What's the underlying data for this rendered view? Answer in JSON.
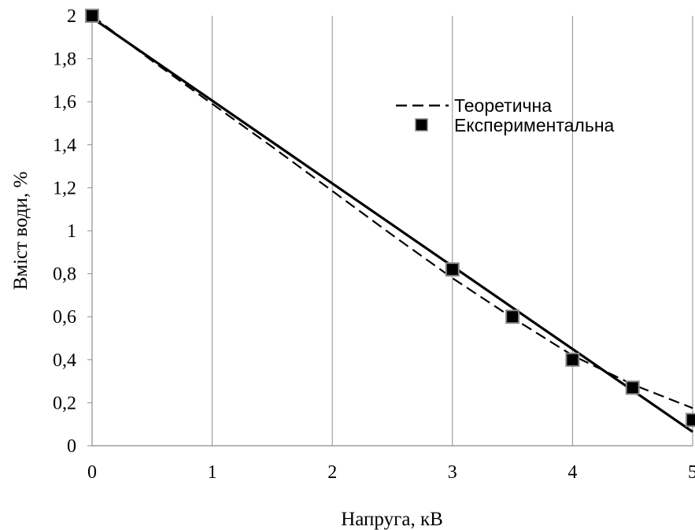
{
  "chart_data": {
    "type": "line",
    "xlabel": "Напруга, кВ",
    "ylabel": "Вміст води, %",
    "xlim": [
      0,
      5
    ],
    "ylim": [
      0,
      2
    ],
    "x_ticks": [
      "0",
      "1",
      "2",
      "3",
      "4",
      "5"
    ],
    "y_ticks": [
      "0",
      "0,2",
      "0,4",
      "0,6",
      "0,8",
      "1",
      "1,2",
      "1,4",
      "1,6",
      "1,8",
      "2"
    ],
    "grid": "vertical",
    "legend_position": "top-right",
    "series": [
      {
        "name": "Теоретична",
        "style": "dashed",
        "color": "#000000",
        "x": [
          0,
          0.5,
          1,
          1.5,
          2,
          2.5,
          3,
          3.5,
          4,
          4.5,
          5
        ],
        "y": [
          2.0,
          1.79,
          1.59,
          1.39,
          1.185,
          0.98,
          0.78,
          0.595,
          0.42,
          0.285,
          0.175
        ]
      },
      {
        "name": "Експериментальна",
        "style": "markers",
        "color": "#000000",
        "x": [
          0,
          3,
          3.5,
          4,
          4.5,
          5
        ],
        "y": [
          2.0,
          0.82,
          0.6,
          0.4,
          0.27,
          0.12
        ]
      },
      {
        "style": "solid",
        "color": "#000000",
        "x": [
          0,
          5
        ],
        "y": [
          1.99,
          0.065
        ]
      }
    ]
  }
}
